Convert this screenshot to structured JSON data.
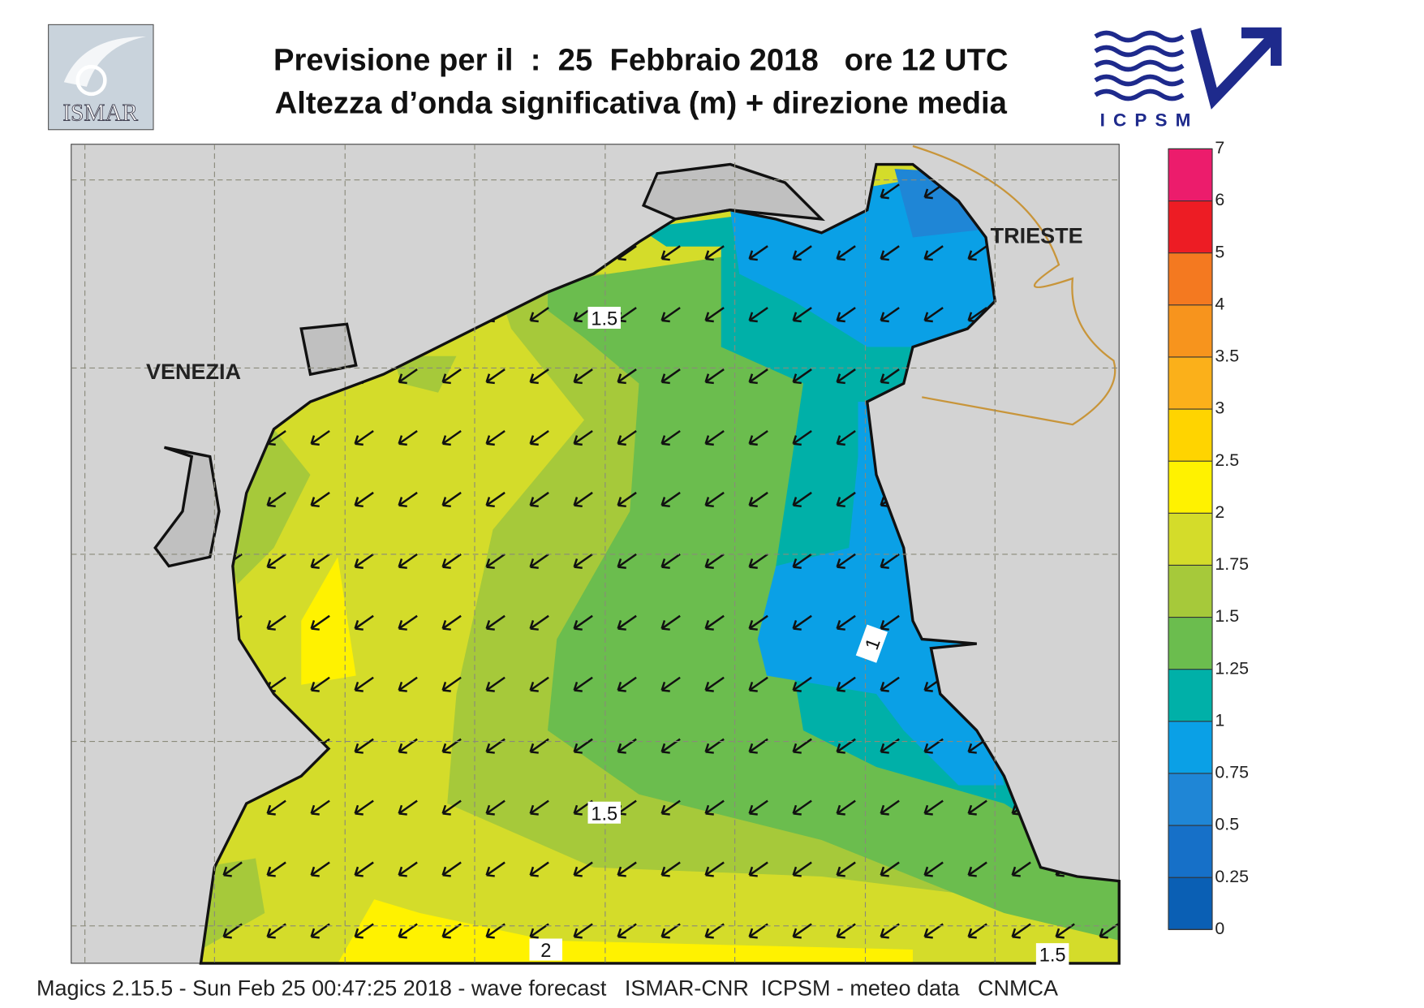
{
  "header": {
    "title_line1": "Previsione per il  :  25  Febbraio 2018   ore 12 UTC",
    "title_line2": "Altezza d’onda significativa (m) + direzione media",
    "logo_left": "ISMAR",
    "logo_right": "ICPSM"
  },
  "map": {
    "places": [
      "VENEZIA",
      "TRIESTE"
    ],
    "contour_labels": [
      "1.5",
      "1.5",
      "1",
      "2",
      "1.5"
    ]
  },
  "colorbar": {
    "ticks": [
      0,
      0.25,
      0.5,
      0.75,
      1,
      1.25,
      1.5,
      1.75,
      2,
      2.5,
      3,
      3.5,
      4,
      5,
      6,
      7
    ],
    "colors": [
      "#0a5fb4",
      "#1670c8",
      "#1f86d6",
      "#0aa0e6",
      "#00b0a8",
      "#6bbd4e",
      "#a6c93a",
      "#d4dc2a",
      "#fff200",
      "#ffd400",
      "#fbb01a",
      "#f7941d",
      "#f47920",
      "#ed1c24",
      "#ec1c6c"
    ]
  },
  "footer": "Magics 2.15.5 - Sun Feb 25 00:47:25 2018 - wave forecast   ISMAR-CNR  ICPSM - meteo data   CNMCA"
}
